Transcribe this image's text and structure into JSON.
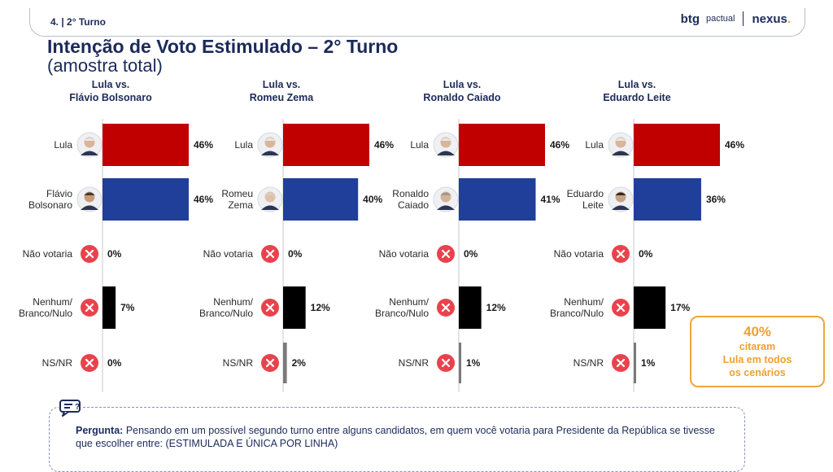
{
  "header": {
    "slide_label": "4. | 2° Turno",
    "logo_btg": "btg",
    "logo_btg_sub": "pactual",
    "logo_nexus": "nexus",
    "logo_nexus_dot": "."
  },
  "title": "Intenção de Voto Estimulado – 2° Turno",
  "subtitle": "(amostra total)",
  "colors": {
    "lula": "#c00000",
    "opponent": "#1f3f9b",
    "nenhum": "#000000",
    "nsnr": "#7a7a7a",
    "x_icon": "#e8434d",
    "accent": "#f0a030"
  },
  "chart_data": [
    {
      "type": "bar",
      "title": "Lula vs.\nFlávio Bolsonaro",
      "categories": [
        "Lula",
        "Flávio\nBolsonaro",
        "Não votaria",
        "Nenhum/\nBranco/Nulo",
        "NS/NR"
      ],
      "values": [
        46,
        46,
        0,
        7,
        0
      ],
      "value_labels": [
        "46%",
        "46%",
        "0%",
        "7%",
        "0%"
      ],
      "icons": [
        "lula-avatar",
        "flavio-avatar",
        "x-icon",
        "x-icon",
        "x-icon"
      ]
    },
    {
      "type": "bar",
      "title": "Lula vs.\nRomeu Zema",
      "categories": [
        "Lula",
        "Romeu\nZema",
        "Não votaria",
        "Nenhum/\nBranco/Nulo",
        "NS/NR"
      ],
      "values": [
        46,
        40,
        0,
        12,
        2
      ],
      "value_labels": [
        "46%",
        "40%",
        "0%",
        "12%",
        "2%"
      ],
      "icons": [
        "lula-avatar",
        "zema-avatar",
        "x-icon",
        "x-icon",
        "x-icon"
      ]
    },
    {
      "type": "bar",
      "title": "Lula vs.\nRonaldo Caiado",
      "categories": [
        "Lula",
        "Ronaldo\nCaiado",
        "Não votaria",
        "Nenhum/\nBranco/Nulo",
        "NS/NR"
      ],
      "values": [
        46,
        41,
        0,
        12,
        1
      ],
      "value_labels": [
        "46%",
        "41%",
        "0%",
        "12%",
        "1%"
      ],
      "icons": [
        "lula-avatar",
        "caiado-avatar",
        "x-icon",
        "x-icon",
        "x-icon"
      ]
    },
    {
      "type": "bar",
      "title": "Lula vs.\nEduardo Leite",
      "categories": [
        "Lula",
        "Eduardo\nLeite",
        "Não votaria",
        "Nenhum/\nBranco/Nulo",
        "NS/NR"
      ],
      "values": [
        46,
        36,
        0,
        17,
        1
      ],
      "value_labels": [
        "46%",
        "36%",
        "0%",
        "17%",
        "1%"
      ],
      "icons": [
        "lula-avatar",
        "leite-avatar",
        "x-icon",
        "x-icon",
        "x-icon"
      ]
    }
  ],
  "callout": {
    "percent": "40%",
    "text": "citaram\nLula em todos\nos cenários"
  },
  "question": {
    "label": "Pergunta:",
    "text": " Pensando em um possível segundo turno entre alguns candidatos, em quem você votaria para Presidente da República se tivesse que escolher entre: (ESTIMULADA E ÚNICA POR LINHA)"
  }
}
